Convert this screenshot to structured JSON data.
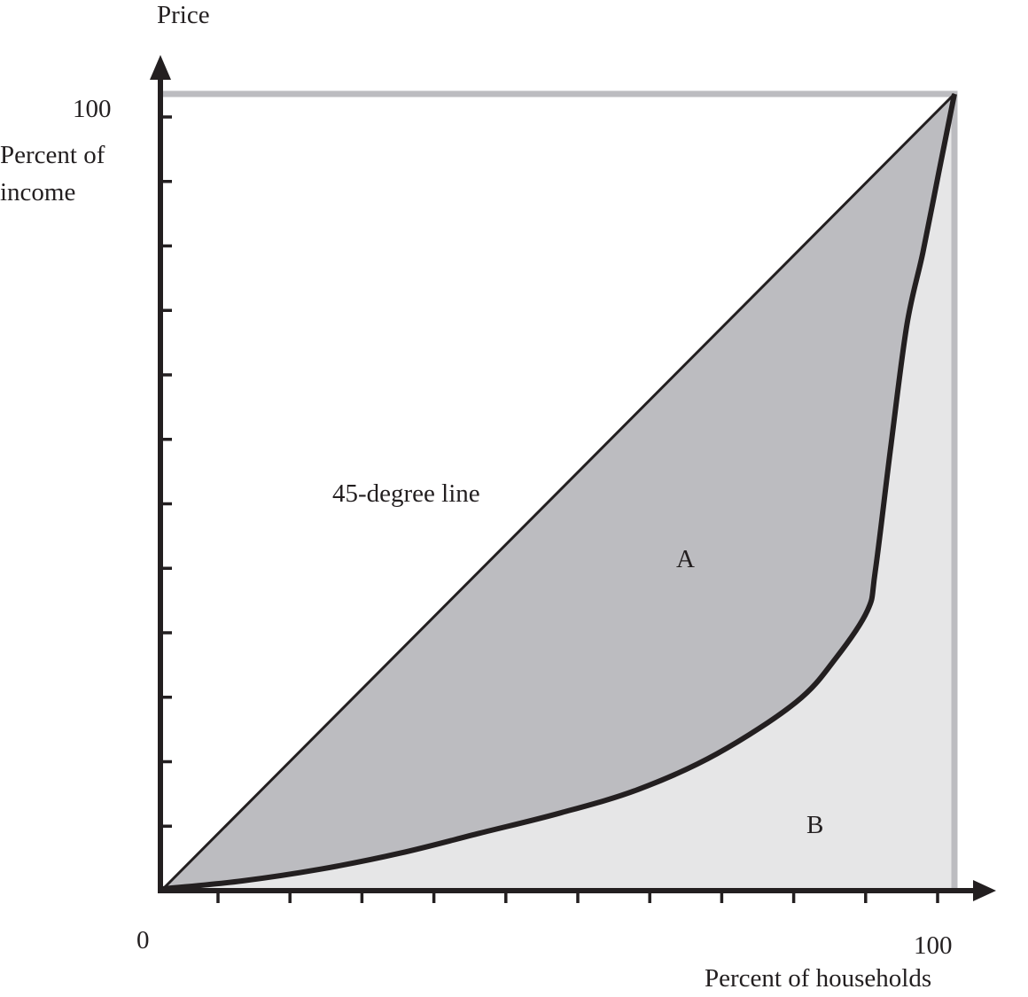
{
  "chart_data": {
    "type": "line",
    "title": "",
    "ylabel_top": "Price",
    "ylabel": [
      "Percent of",
      "income"
    ],
    "xlabel": "Percent of households",
    "origin_label": "0",
    "x_max_label": "100",
    "y_max_label": "100",
    "xlim": [
      0,
      100
    ],
    "ylim": [
      0,
      100
    ],
    "x_tick_count": 11,
    "y_tick_count": 12,
    "series": [
      {
        "name": "45-degree line",
        "x": [
          0,
          100
        ],
        "y": [
          0,
          100
        ]
      },
      {
        "x": [
          0,
          10,
          20,
          30,
          40,
          50,
          60,
          70,
          80,
          85,
          89,
          90,
          92,
          94,
          96,
          98,
          100
        ],
        "y": [
          0,
          1,
          2.5,
          4.5,
          7,
          9.5,
          12.5,
          17,
          23.5,
          29,
          35,
          40,
          56,
          71,
          80,
          90,
          100
        ]
      }
    ],
    "annotations": [
      {
        "text": "A",
        "x": 65,
        "y": 41.5
      },
      {
        "text": "B",
        "x": 81.5,
        "y": 8.5
      }
    ],
    "colors": {
      "area_a": "#bcbcc0",
      "area_b": "#e6e6e7",
      "lines": "#231f20",
      "frame": "#bcbcc0"
    }
  }
}
